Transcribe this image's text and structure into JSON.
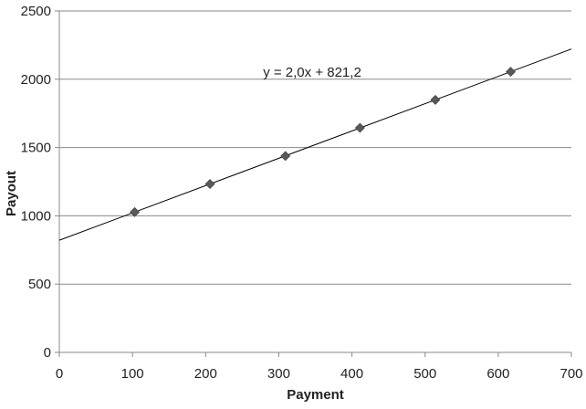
{
  "chart_data": {
    "type": "scatter",
    "title": "",
    "xlabel": "Payment",
    "ylabel": "Payout",
    "xlim": [
      0,
      700
    ],
    "ylim": [
      0,
      2500
    ],
    "x_ticks": [
      "0",
      "100",
      "200",
      "300",
      "400",
      "500",
      "600",
      "700"
    ],
    "y_ticks": [
      "0",
      "500",
      "1000",
      "1500",
      "2000",
      "2500"
    ],
    "grid": "horizontal",
    "legend": "none",
    "marker": "diamond",
    "marker_color": "#5a5a5a",
    "series": [
      {
        "x": [
          103,
          206,
          309,
          411,
          514,
          617
        ],
        "y": [
          1027,
          1233,
          1438,
          1644,
          1849,
          2055
        ]
      }
    ],
    "trendline": {
      "type": "linear",
      "slope": 2.0,
      "intercept": 821.2,
      "label": "y = 2,0x + 821,2"
    }
  }
}
